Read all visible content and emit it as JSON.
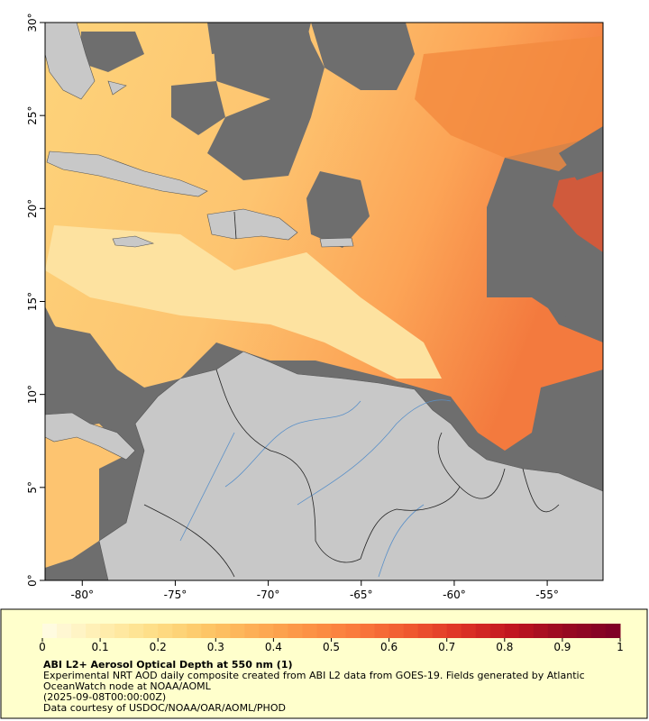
{
  "map": {
    "xlim": [
      -82,
      -52
    ],
    "ylim": [
      0,
      30
    ],
    "xticks": [
      {
        "value": -80,
        "label": "-80°"
      },
      {
        "value": -75,
        "label": "-75°"
      },
      {
        "value": -70,
        "label": "-70°"
      },
      {
        "value": -65,
        "label": "-65°"
      },
      {
        "value": -60,
        "label": "-60°"
      },
      {
        "value": -55,
        "label": "-55°"
      }
    ],
    "yticks": [
      {
        "value": 0,
        "label": "0°"
      },
      {
        "value": 5,
        "label": "5°"
      },
      {
        "value": 10,
        "label": "10°"
      },
      {
        "value": 15,
        "label": "15°"
      },
      {
        "value": 20,
        "label": "20°"
      },
      {
        "value": 25,
        "label": "25°"
      },
      {
        "value": 30,
        "label": "30°"
      }
    ]
  },
  "colorbar": {
    "lim": [
      0,
      1
    ],
    "ticks": [
      0,
      0.1,
      0.2,
      0.3,
      0.4,
      0.5,
      0.6,
      0.7,
      0.8,
      0.9,
      1
    ],
    "colors": [
      "#fffbe0",
      "#ffeeb0",
      "#fedf88",
      "#fdc868",
      "#fdae55",
      "#fc9446",
      "#fa7a3c",
      "#f05a30",
      "#de3426",
      "#c2161f",
      "#9a0a20",
      "#800026"
    ]
  },
  "caption": {
    "title": "ABI L2+ Aerosol Optical Depth at 550 nm (1)",
    "description": "Experimental NRT AOD daily composite created from ABI L2 data from GOES-19. Fields generated by Atlantic OceanWatch node at NOAA/AOML",
    "date": "(2025-09-08T00:00:00Z)",
    "credit": "Data courtesy of USDOC/NOAA/OAR/AOML/PHOD"
  }
}
